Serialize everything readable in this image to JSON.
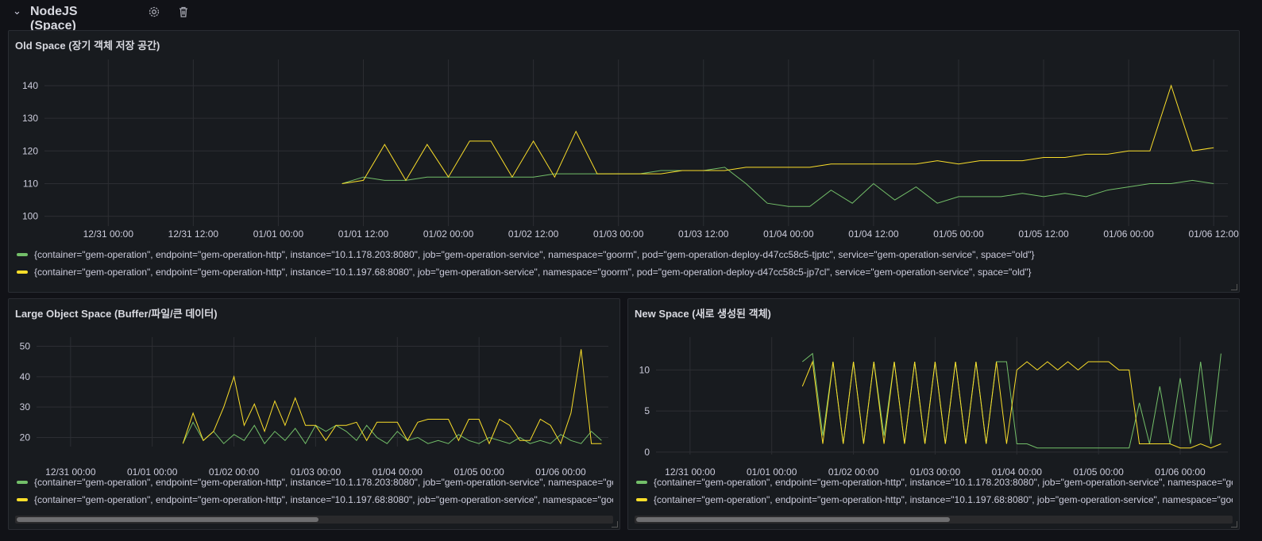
{
  "row": {
    "title": "NodeJS (Space)",
    "collapse_icon": "chevron-down-icon",
    "settings_icon": "gear-icon",
    "delete_icon": "trash-icon"
  },
  "colors": {
    "green": "#73bf69",
    "yellow": "#fade2a",
    "background": "#111217",
    "panel": "#181b1f"
  },
  "legend_labels": {
    "a_full": "{container=\"gem-operation\", endpoint=\"gem-operation-http\", instance=\"10.1.178.203:8080\", job=\"gem-operation-service\", namespace=\"goorm\", pod=\"gem-operation-deploy-d47cc58c5-tjptc\", service=\"gem-operation-service\", space=\"old\"}",
    "b_full": "{container=\"gem-operation\", endpoint=\"gem-operation-http\", instance=\"10.1.197.68:8080\", job=\"gem-operation-service\", namespace=\"goorm\", pod=\"gem-operation-deploy-d47cc58c5-jp7cl\", service=\"gem-operation-service\", space=\"old\"}",
    "a_short": "{container=\"gem-operation\", endpoint=\"gem-operation-http\", instance=\"10.1.178.203:8080\", job=\"gem-operation-service\", namespace=\"goorm\", pod=\"gem-operation-deploy-d47cc58c5-tjptc\", service=\"gem-operation-service\"}",
    "b_short": "{container=\"gem-operation\", endpoint=\"gem-operation-http\", instance=\"10.1.197.68:8080\", job=\"gem-operation-service\", namespace=\"goorm\", pod=\"gem-operation-deploy-d47cc58c5-jp7cl\", service=\"gem-operation-service\"}"
  },
  "chart_data": [
    {
      "id": "old",
      "type": "line",
      "title": "Old Space (장기 객체 저장 공간)",
      "xlim": [
        "12/30 15:00",
        "01/06 14:00"
      ],
      "ylim": [
        97,
        148
      ],
      "xticks": [
        "12/31 00:00",
        "12/31 12:00",
        "01/01 00:00",
        "01/01 12:00",
        "01/02 00:00",
        "01/02 12:00",
        "01/03 00:00",
        "01/03 12:00",
        "01/04 00:00",
        "01/04 12:00",
        "01/05 00:00",
        "01/05 12:00",
        "01/06 00:00",
        "01/06 12:00"
      ],
      "yticks": [
        100,
        110,
        120,
        130,
        140
      ],
      "grid": true,
      "legend": "bottom",
      "x": [
        "01/01 09:00",
        "01/01 12:00",
        "01/01 15:00",
        "01/01 18:00",
        "01/01 21:00",
        "01/02 00:00",
        "01/02 03:00",
        "01/02 06:00",
        "01/02 09:00",
        "01/02 12:00",
        "01/02 15:00",
        "01/02 18:00",
        "01/02 21:00",
        "01/03 00:00",
        "01/03 03:00",
        "01/03 06:00",
        "01/03 09:00",
        "01/03 12:00",
        "01/03 15:00",
        "01/03 18:00",
        "01/03 21:00",
        "01/04 00:00",
        "01/04 03:00",
        "01/04 06:00",
        "01/04 09:00",
        "01/04 12:00",
        "01/04 15:00",
        "01/04 18:00",
        "01/04 21:00",
        "01/05 00:00",
        "01/05 03:00",
        "01/05 06:00",
        "01/05 09:00",
        "01/05 12:00",
        "01/05 15:00",
        "01/05 18:00",
        "01/05 21:00",
        "01/06 00:00",
        "01/06 03:00",
        "01/06 06:00",
        "01/06 09:00",
        "01/06 12:00"
      ],
      "series": [
        {
          "name": "{container=\"gem-operation\", endpoint=\"gem-operation-http\", instance=\"10.1.178.203:8080\", job=\"gem-operation-service\", namespace=\"goorm\", pod=\"gem-operation-deploy-d47cc58c5-tjptc\", service=\"gem-operation-service\", space=\"old\"}",
          "color": "#73bf69",
          "values": [
            110,
            112,
            111,
            111,
            112,
            112,
            112,
            112,
            112,
            112,
            113,
            113,
            113,
            113,
            113,
            114,
            114,
            114,
            115,
            110,
            104,
            103,
            103,
            108,
            104,
            110,
            105,
            109,
            104,
            106,
            106,
            106,
            107,
            106,
            107,
            106,
            108,
            109,
            110,
            110,
            111,
            110
          ]
        },
        {
          "name": "{container=\"gem-operation\", endpoint=\"gem-operation-http\", instance=\"10.1.197.68:8080\", job=\"gem-operation-service\", namespace=\"goorm\", pod=\"gem-operation-deploy-d47cc58c5-jp7cl\", service=\"gem-operation-service\", space=\"old\"}",
          "color": "#fade2a",
          "values": [
            110,
            111,
            122,
            111,
            122,
            112,
            123,
            123,
            112,
            123,
            112,
            126,
            113,
            113,
            113,
            113,
            114,
            114,
            114,
            115,
            115,
            115,
            115,
            116,
            116,
            116,
            116,
            116,
            117,
            116,
            117,
            117,
            117,
            118,
            118,
            119,
            119,
            120,
            120,
            140,
            120,
            121
          ]
        }
      ]
    },
    {
      "id": "large",
      "type": "line",
      "title": "Large Object Space (Buffer/파일/큰 데이터)",
      "xlim": [
        "12/30 14:00",
        "01/06 14:00"
      ],
      "ylim": [
        17,
        53
      ],
      "xticks": [
        "12/31 00:00",
        "01/01 00:00",
        "01/02 00:00",
        "01/03 00:00",
        "01/04 00:00",
        "01/05 00:00",
        "01/06 00:00"
      ],
      "yticks": [
        20,
        30,
        40,
        50
      ],
      "grid": true,
      "legend": "bottom",
      "series": [
        {
          "color": "#73bf69",
          "values": [
            18,
            25,
            19,
            22,
            18,
            21,
            19,
            24,
            18,
            22,
            19,
            23,
            18,
            24,
            22,
            24,
            22,
            19,
            24,
            20,
            18,
            22,
            19,
            20,
            18,
            19,
            18,
            21,
            19,
            18,
            20,
            19,
            18,
            20,
            18,
            19,
            18,
            21,
            19,
            18,
            22,
            19
          ]
        },
        {
          "color": "#fade2a",
          "values": [
            18,
            28,
            19,
            22,
            30,
            40,
            24,
            31,
            22,
            32,
            24,
            33,
            24,
            24,
            19,
            24,
            24,
            25,
            19,
            25,
            25,
            25,
            19,
            25,
            26,
            26,
            26,
            19,
            26,
            26,
            18,
            26,
            24,
            19,
            19,
            26,
            24,
            18,
            28,
            49,
            18,
            18
          ]
        }
      ]
    },
    {
      "id": "new",
      "type": "line",
      "title": "New Space (새로 생성된 객체)",
      "xlim": [
        "12/30 14:00",
        "01/06 14:00"
      ],
      "ylim": [
        -0.3,
        14
      ],
      "xticks": [
        "12/31 00:00",
        "01/01 00:00",
        "01/02 00:00",
        "01/03 00:00",
        "01/04 00:00",
        "01/05 00:00",
        "01/06 00:00"
      ],
      "yticks": [
        0,
        5,
        10
      ],
      "grid": true,
      "legend": "bottom",
      "series": [
        {
          "color": "#73bf69",
          "values": [
            11,
            12,
            2,
            11,
            1,
            11,
            1,
            11,
            2,
            11,
            1,
            11,
            1,
            11,
            1,
            11,
            1,
            11,
            1,
            11,
            11,
            1,
            1,
            0.5,
            0.5,
            0.5,
            0.5,
            0.5,
            0.5,
            0.5,
            0.5,
            0.5,
            0.5,
            6,
            1,
            8,
            1,
            9,
            1,
            11,
            1,
            12
          ]
        },
        {
          "color": "#fade2a",
          "values": [
            8,
            11,
            1,
            11,
            1,
            11,
            1,
            11,
            1,
            11,
            1,
            11,
            1,
            11,
            1,
            11,
            1,
            11,
            1,
            11,
            1,
            10,
            11,
            10,
            11,
            10,
            11,
            10,
            11,
            11,
            11,
            10,
            10,
            1,
            1,
            1,
            1,
            0.5,
            0.5,
            1,
            0.5,
            1
          ]
        }
      ]
    }
  ]
}
